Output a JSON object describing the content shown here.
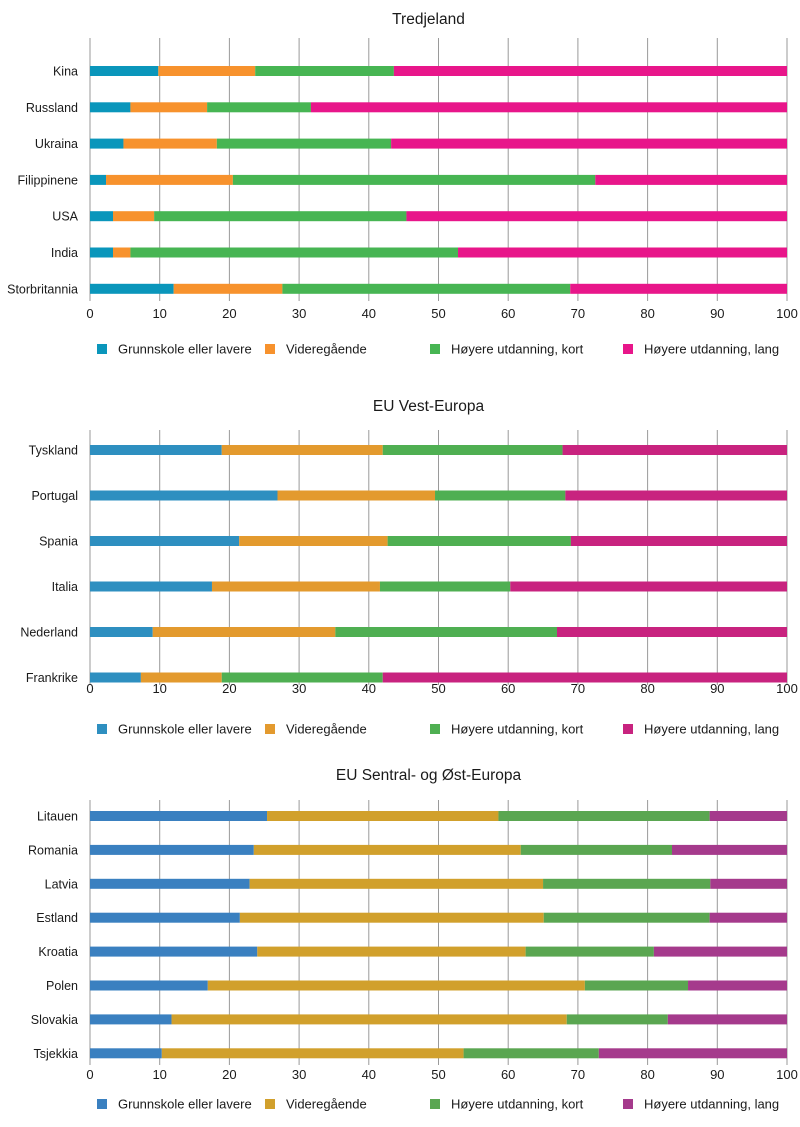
{
  "chart_data": [
    {
      "type": "bar",
      "orientation": "horizontal",
      "stacked": true,
      "title": "Tredjeland",
      "categories": [
        "Kina",
        "Russland",
        "Ukraina",
        "Filippinene",
        "USA",
        "India",
        "Storbritannia"
      ],
      "series": [
        {
          "name": "Grunnskole eller lavere",
          "color": "#0a96bb",
          "values": [
            9.8,
            5.8,
            4.8,
            2.3,
            3.3,
            3.3,
            12.0
          ]
        },
        {
          "name": "Videregående",
          "color": "#f7922d",
          "values": [
            13.9,
            11.0,
            13.4,
            18.2,
            5.9,
            2.5,
            15.6
          ]
        },
        {
          "name": "Høyere utdanning, kort",
          "color": "#47b553",
          "values": [
            19.9,
            14.9,
            25.0,
            52.0,
            36.2,
            47.0,
            41.3
          ]
        },
        {
          "name": "Høyere utdanning, lang",
          "color": "#e8168a",
          "values": [
            56.4,
            68.3,
            56.8,
            27.5,
            54.6,
            47.2,
            31.1
          ]
        }
      ],
      "xticks": [
        "0",
        "10",
        "20",
        "30",
        "40",
        "50",
        "60",
        "70",
        "80",
        "90",
        "100"
      ],
      "xlim": [
        0,
        100
      ],
      "grid": true,
      "legend": "bottom"
    },
    {
      "type": "bar",
      "orientation": "horizontal",
      "stacked": true,
      "title": "EU Vest-Europa",
      "categories": [
        "Tyskland",
        "Portugal",
        "Spania",
        "Italia",
        "Nederland",
        "Frankrike"
      ],
      "series": [
        {
          "name": "Grunnskole eller lavere",
          "color": "#2e8fc0",
          "values": [
            18.9,
            26.9,
            21.4,
            17.5,
            9.0,
            7.3
          ]
        },
        {
          "name": "Videregående",
          "color": "#e39a2e",
          "values": [
            23.1,
            22.6,
            21.3,
            24.1,
            26.2,
            11.6
          ]
        },
        {
          "name": "Høyere utdanning, kort",
          "color": "#4faf52",
          "values": [
            25.8,
            18.7,
            26.3,
            18.7,
            31.8,
            23.1
          ]
        },
        {
          "name": "Høyere utdanning, lang",
          "color": "#c8237f",
          "values": [
            32.2,
            31.8,
            31.0,
            39.7,
            33.0,
            58.0
          ]
        }
      ],
      "xticks": [
        "0",
        "10",
        "20",
        "30",
        "40",
        "50",
        "60",
        "70",
        "80",
        "90",
        "100"
      ],
      "xlim": [
        0,
        100
      ],
      "grid": true,
      "legend": "bottom"
    },
    {
      "type": "bar",
      "orientation": "horizontal",
      "stacked": true,
      "title": "EU Sentral- og Øst-Europa",
      "categories": [
        "Litauen",
        "Romania",
        "Latvia",
        "Estland",
        "Kroatia",
        "Polen",
        "Slovakia",
        "Tsjekkia"
      ],
      "series": [
        {
          "name": "Grunnskole eller lavere",
          "color": "#3a80c0",
          "values": [
            25.4,
            23.5,
            22.9,
            21.5,
            24.0,
            16.9,
            11.7,
            10.3
          ]
        },
        {
          "name": "Videregående",
          "color": "#d1a02c",
          "values": [
            33.2,
            38.3,
            42.1,
            43.6,
            38.5,
            54.1,
            56.7,
            43.3
          ]
        },
        {
          "name": "Høyere utdanning, kort",
          "color": "#5aa651",
          "values": [
            30.3,
            21.7,
            24.0,
            23.8,
            18.4,
            14.8,
            14.5,
            19.4
          ]
        },
        {
          "name": "Høyere utdanning, lang",
          "color": "#a53a8c",
          "values": [
            11.1,
            16.5,
            11.0,
            11.1,
            19.1,
            14.2,
            17.1,
            27.0
          ]
        }
      ],
      "xticks": [
        "0",
        "10",
        "20",
        "30",
        "40",
        "50",
        "60",
        "70",
        "80",
        "90",
        "100"
      ],
      "xlim": [
        0,
        100
      ],
      "grid": true,
      "legend": "bottom"
    }
  ]
}
